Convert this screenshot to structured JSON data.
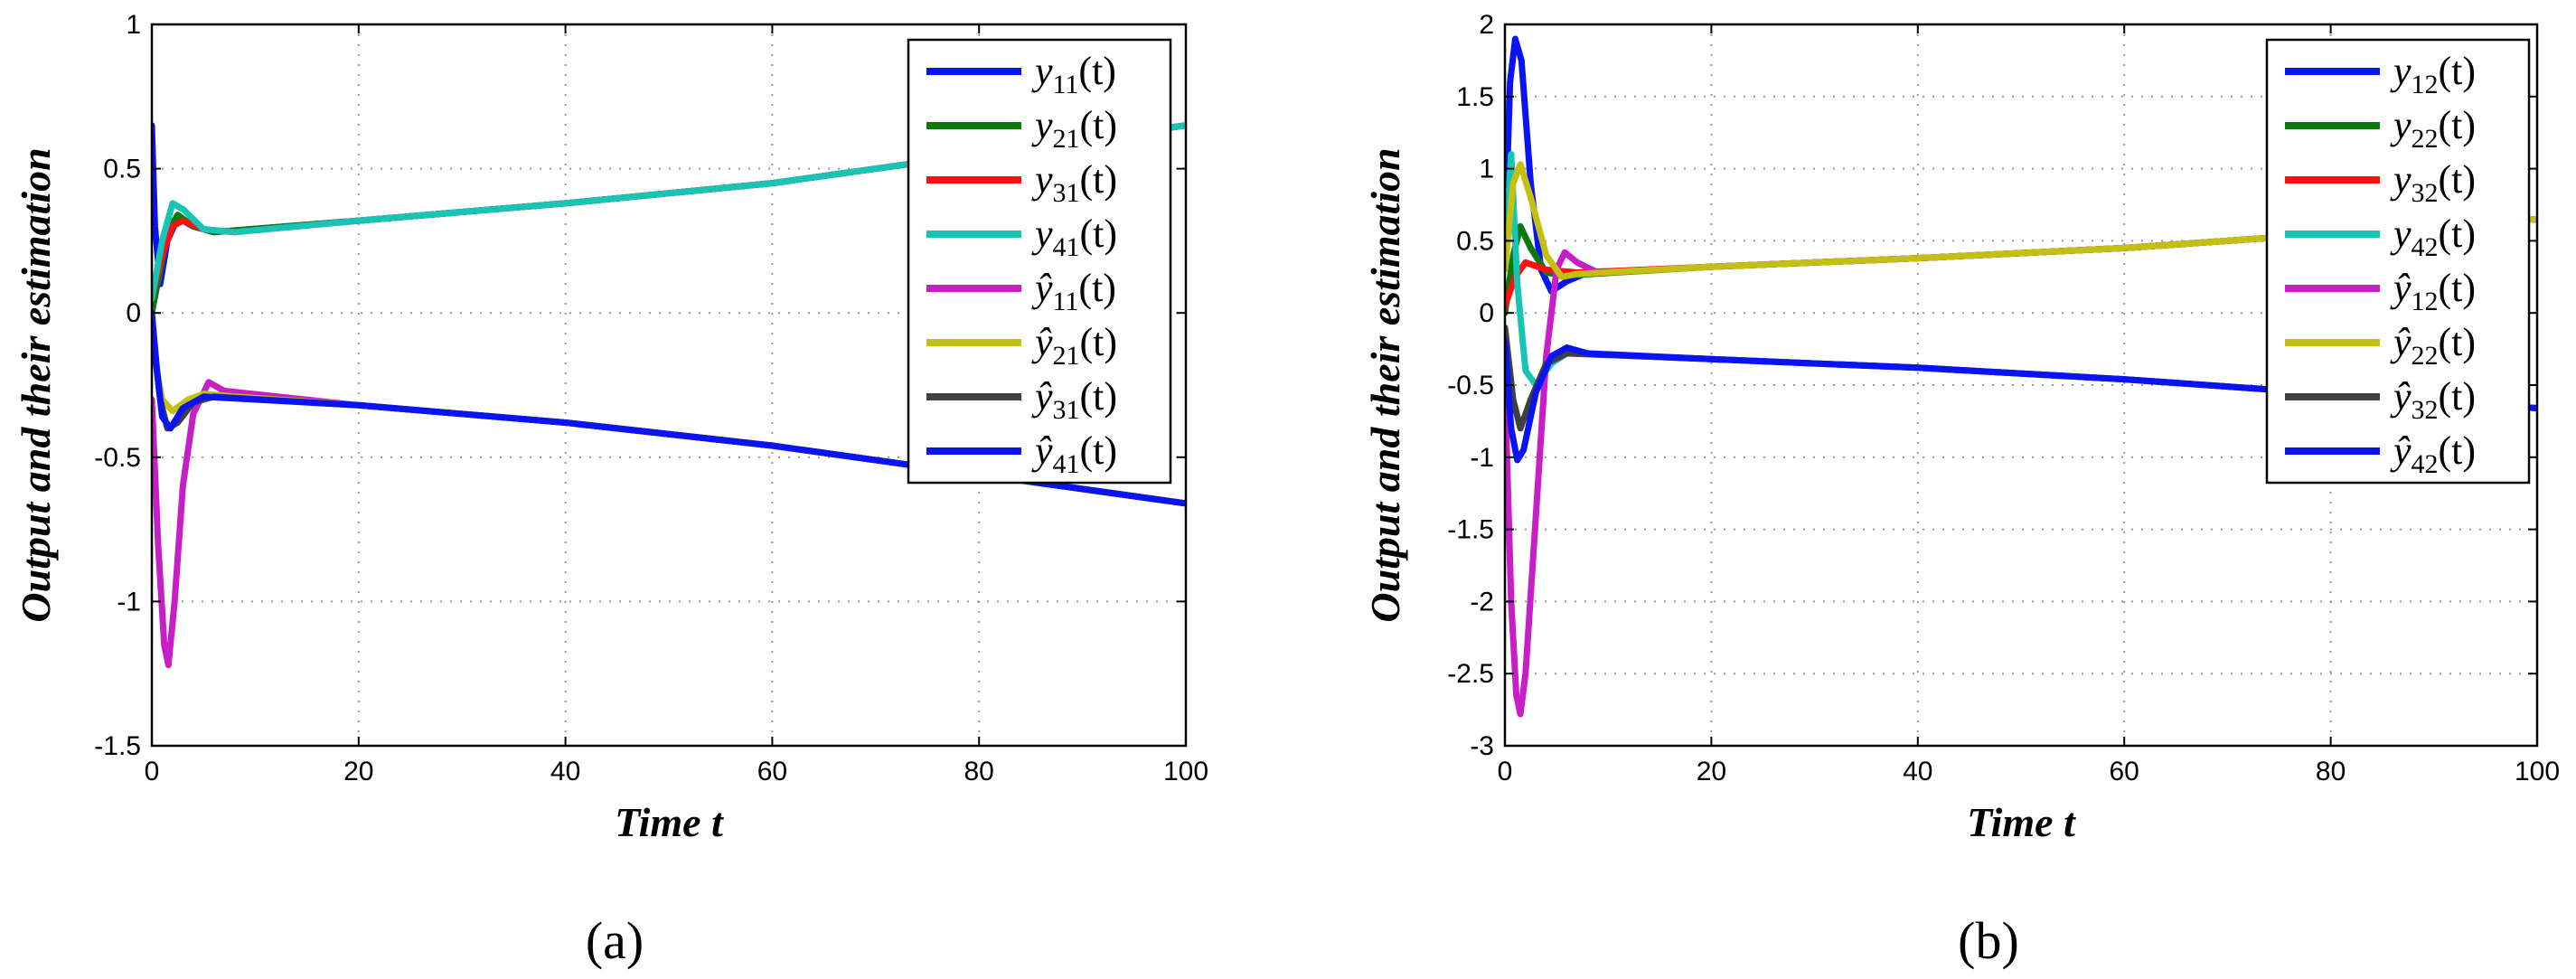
{
  "colors": {
    "blue": "#0a14f0",
    "green": "#0b7a0b",
    "red": "#ff1010",
    "cyan": "#18c4b4",
    "magenta": "#c81ec8",
    "yellow": "#c4c012",
    "dark": "#404040"
  },
  "chart_data": [
    {
      "type": "line",
      "caption": "(a)",
      "xlabel": "Time t",
      "ylabel": "Output and their estimation",
      "xlim": [
        0,
        100
      ],
      "ylim": [
        -1.5,
        1
      ],
      "xticks": [
        0,
        20,
        40,
        60,
        80,
        100
      ],
      "yticks": [
        -1.5,
        -1,
        -0.5,
        0,
        0.5,
        1
      ],
      "xtick_labels": [
        "0",
        "20",
        "40",
        "60",
        "80",
        "100"
      ],
      "ytick_labels": [
        "-1.5",
        "-1",
        "-0.5",
        "0",
        "0.5",
        "1"
      ],
      "grid": true,
      "legend_position": "top-right",
      "series": [
        {
          "name": "y11(t)",
          "hat": false,
          "base": "y",
          "sub": "11",
          "arg": "(t)",
          "color": "blue",
          "points": [
            [
              0,
              0.65
            ],
            [
              0.3,
              0.3
            ],
            [
              0.8,
              0.1
            ],
            [
              1.5,
              0.25
            ],
            [
              2.5,
              0.33
            ],
            [
              4,
              0.3
            ],
            [
              6,
              0.28
            ],
            [
              20,
              0.32
            ],
            [
              40,
              0.38
            ],
            [
              60,
              0.45
            ],
            [
              80,
              0.55
            ],
            [
              100,
              0.65
            ]
          ]
        },
        {
          "name": "y21(t)",
          "hat": false,
          "base": "y",
          "sub": "21",
          "arg": "(t)",
          "color": "green",
          "points": [
            [
              0,
              0.0
            ],
            [
              0.8,
              0.15
            ],
            [
              1.5,
              0.28
            ],
            [
              2.5,
              0.34
            ],
            [
              4,
              0.3
            ],
            [
              6,
              0.28
            ],
            [
              20,
              0.32
            ],
            [
              40,
              0.38
            ],
            [
              60,
              0.45
            ],
            [
              80,
              0.55
            ],
            [
              100,
              0.65
            ]
          ]
        },
        {
          "name": "y31(t)",
          "hat": false,
          "base": "y",
          "sub": "31",
          "arg": "(t)",
          "color": "red",
          "points": [
            [
              0,
              0.05
            ],
            [
              1,
              0.2
            ],
            [
              2,
              0.3
            ],
            [
              3,
              0.32
            ],
            [
              5,
              0.29
            ],
            [
              8,
              0.28
            ],
            [
              20,
              0.32
            ],
            [
              40,
              0.38
            ],
            [
              60,
              0.45
            ],
            [
              80,
              0.55
            ],
            [
              100,
              0.65
            ]
          ]
        },
        {
          "name": "y41(t)",
          "hat": false,
          "base": "y",
          "sub": "41",
          "arg": "(t)",
          "color": "cyan",
          "points": [
            [
              0,
              0.05
            ],
            [
              1,
              0.25
            ],
            [
              2,
              0.38
            ],
            [
              3,
              0.36
            ],
            [
              5,
              0.29
            ],
            [
              8,
              0.28
            ],
            [
              20,
              0.32
            ],
            [
              40,
              0.38
            ],
            [
              60,
              0.45
            ],
            [
              80,
              0.55
            ],
            [
              100,
              0.65
            ]
          ]
        },
        {
          "name": "ŷ11(t)",
          "hat": true,
          "base": "y",
          "sub": "11",
          "arg": "(t)",
          "color": "magenta",
          "points": [
            [
              0,
              -0.3
            ],
            [
              0.6,
              -0.8
            ],
            [
              1.2,
              -1.15
            ],
            [
              1.6,
              -1.22
            ],
            [
              2.2,
              -1.0
            ],
            [
              3,
              -0.6
            ],
            [
              4,
              -0.35
            ],
            [
              5.5,
              -0.24
            ],
            [
              7,
              -0.27
            ],
            [
              20,
              -0.32
            ],
            [
              40,
              -0.38
            ],
            [
              60,
              -0.46
            ],
            [
              80,
              -0.56
            ],
            [
              100,
              -0.66
            ]
          ]
        },
        {
          "name": "ŷ21(t)",
          "hat": true,
          "base": "y",
          "sub": "21",
          "arg": "(t)",
          "color": "yellow",
          "points": [
            [
              0,
              -0.1
            ],
            [
              1,
              -0.3
            ],
            [
              2,
              -0.34
            ],
            [
              3.5,
              -0.3
            ],
            [
              5,
              -0.28
            ],
            [
              8,
              -0.29
            ],
            [
              20,
              -0.32
            ],
            [
              40,
              -0.38
            ],
            [
              60,
              -0.46
            ],
            [
              80,
              -0.56
            ],
            [
              100,
              -0.66
            ]
          ]
        },
        {
          "name": "ŷ31(t)",
          "hat": true,
          "base": "y",
          "sub": "31",
          "arg": "(t)",
          "color": "dark",
          "points": [
            [
              0,
              -0.05
            ],
            [
              0.8,
              -0.3
            ],
            [
              1.5,
              -0.4
            ],
            [
              2.5,
              -0.38
            ],
            [
              4,
              -0.31
            ],
            [
              6,
              -0.29
            ],
            [
              20,
              -0.32
            ],
            [
              40,
              -0.38
            ],
            [
              60,
              -0.46
            ],
            [
              80,
              -0.56
            ],
            [
              100,
              -0.66
            ]
          ]
        },
        {
          "name": "ŷ41(t)",
          "hat": true,
          "base": "y",
          "sub": "41",
          "arg": "(t)",
          "color": "blue",
          "points": [
            [
              0,
              0.0
            ],
            [
              0.5,
              -0.2
            ],
            [
              1,
              -0.36
            ],
            [
              1.8,
              -0.4
            ],
            [
              3,
              -0.33
            ],
            [
              5,
              -0.29
            ],
            [
              20,
              -0.32
            ],
            [
              40,
              -0.38
            ],
            [
              60,
              -0.46
            ],
            [
              80,
              -0.56
            ],
            [
              100,
              -0.66
            ]
          ]
        }
      ]
    },
    {
      "type": "line",
      "caption": "(b)",
      "xlabel": "Time t",
      "ylabel": "Output and their estimation",
      "xlim": [
        0,
        100
      ],
      "ylim": [
        -3,
        2
      ],
      "xticks": [
        0,
        20,
        40,
        60,
        80,
        100
      ],
      "yticks": [
        -3,
        -2.5,
        -2,
        -1.5,
        -1,
        -0.5,
        0,
        0.5,
        1,
        1.5,
        2
      ],
      "xtick_labels": [
        "0",
        "20",
        "40",
        "60",
        "80",
        "100"
      ],
      "ytick_labels": [
        "-3",
        "-2.5",
        "-2",
        "-1.5",
        "-1",
        "-0.5",
        "0",
        "0.5",
        "1",
        "1.5",
        "2"
      ],
      "grid": true,
      "legend_position": "top-right",
      "series": [
        {
          "name": "y12(t)",
          "hat": false,
          "base": "y",
          "sub": "12",
          "arg": "(t)",
          "color": "blue",
          "points": [
            [
              0,
              0.5
            ],
            [
              0.5,
              1.6
            ],
            [
              1,
              1.9
            ],
            [
              1.6,
              1.75
            ],
            [
              2.5,
              0.9
            ],
            [
              3.5,
              0.3
            ],
            [
              4.5,
              0.15
            ],
            [
              6,
              0.22
            ],
            [
              8,
              0.28
            ],
            [
              20,
              0.32
            ],
            [
              40,
              0.38
            ],
            [
              60,
              0.45
            ],
            [
              80,
              0.55
            ],
            [
              100,
              0.65
            ]
          ]
        },
        {
          "name": "y22(t)",
          "hat": false,
          "base": "y",
          "sub": "22",
          "arg": "(t)",
          "color": "green",
          "points": [
            [
              0,
              0.0
            ],
            [
              0.8,
              0.4
            ],
            [
              1.5,
              0.6
            ],
            [
              2.5,
              0.45
            ],
            [
              4,
              0.28
            ],
            [
              6,
              0.26
            ],
            [
              20,
              0.32
            ],
            [
              40,
              0.38
            ],
            [
              60,
              0.45
            ],
            [
              80,
              0.55
            ],
            [
              100,
              0.65
            ]
          ]
        },
        {
          "name": "y32(t)",
          "hat": false,
          "base": "y",
          "sub": "32",
          "arg": "(t)",
          "color": "red",
          "points": [
            [
              0,
              0.05
            ],
            [
              1,
              0.25
            ],
            [
              2,
              0.35
            ],
            [
              4,
              0.3
            ],
            [
              7,
              0.28
            ],
            [
              20,
              0.32
            ],
            [
              40,
              0.38
            ],
            [
              60,
              0.45
            ],
            [
              80,
              0.55
            ],
            [
              100,
              0.65
            ]
          ]
        },
        {
          "name": "y42(t)",
          "hat": false,
          "base": "y",
          "sub": "42",
          "arg": "(t)",
          "color": "cyan",
          "points": [
            [
              0,
              0.4
            ],
            [
              0.6,
              1.1
            ],
            [
              1.2,
              0.2
            ],
            [
              2,
              -0.4
            ],
            [
              3,
              -0.5
            ],
            [
              4.5,
              -0.35
            ],
            [
              6,
              -0.28
            ],
            [
              20,
              -0.32
            ],
            [
              40,
              -0.38
            ],
            [
              60,
              -0.46
            ],
            [
              80,
              -0.56
            ],
            [
              100,
              -0.66
            ]
          ]
        },
        {
          "name": "ŷ12(t)",
          "hat": true,
          "base": "y",
          "sub": "12",
          "arg": "(t)",
          "color": "magenta",
          "points": [
            [
              0,
              -0.5
            ],
            [
              0.6,
              -2.0
            ],
            [
              1.1,
              -2.65
            ],
            [
              1.5,
              -2.78
            ],
            [
              2,
              -2.5
            ],
            [
              3,
              -1.4
            ],
            [
              4,
              -0.3
            ],
            [
              5,
              0.3
            ],
            [
              5.8,
              0.42
            ],
            [
              7,
              0.35
            ],
            [
              9,
              0.28
            ],
            [
              20,
              0.32
            ],
            [
              40,
              0.38
            ],
            [
              60,
              0.45
            ],
            [
              80,
              0.55
            ],
            [
              100,
              0.65
            ]
          ]
        },
        {
          "name": "ŷ22(t)",
          "hat": true,
          "base": "y",
          "sub": "22",
          "arg": "(t)",
          "color": "yellow",
          "points": [
            [
              0,
              0.3
            ],
            [
              0.8,
              0.9
            ],
            [
              1.5,
              1.03
            ],
            [
              2.5,
              0.8
            ],
            [
              4,
              0.4
            ],
            [
              5.5,
              0.25
            ],
            [
              7,
              0.27
            ],
            [
              20,
              0.32
            ],
            [
              40,
              0.38
            ],
            [
              60,
              0.45
            ],
            [
              80,
              0.55
            ],
            [
              100,
              0.65
            ]
          ]
        },
        {
          "name": "ŷ32(t)",
          "hat": true,
          "base": "y",
          "sub": "32",
          "arg": "(t)",
          "color": "dark",
          "points": [
            [
              0,
              -0.1
            ],
            [
              0.8,
              -0.6
            ],
            [
              1.5,
              -0.8
            ],
            [
              2.5,
              -0.6
            ],
            [
              4,
              -0.35
            ],
            [
              6,
              -0.28
            ],
            [
              20,
              -0.32
            ],
            [
              40,
              -0.38
            ],
            [
              60,
              -0.46
            ],
            [
              80,
              -0.56
            ],
            [
              100,
              -0.66
            ]
          ]
        },
        {
          "name": "ŷ42(t)",
          "hat": true,
          "base": "y",
          "sub": "42",
          "arg": "(t)",
          "color": "blue",
          "points": [
            [
              0,
              -0.2
            ],
            [
              0.6,
              -0.8
            ],
            [
              1.2,
              -1.02
            ],
            [
              1.8,
              -0.95
            ],
            [
              3,
              -0.55
            ],
            [
              4.5,
              -0.3
            ],
            [
              6,
              -0.24
            ],
            [
              8,
              -0.28
            ],
            [
              20,
              -0.32
            ],
            [
              40,
              -0.38
            ],
            [
              60,
              -0.46
            ],
            [
              80,
              -0.56
            ],
            [
              100,
              -0.66
            ]
          ]
        }
      ]
    }
  ]
}
